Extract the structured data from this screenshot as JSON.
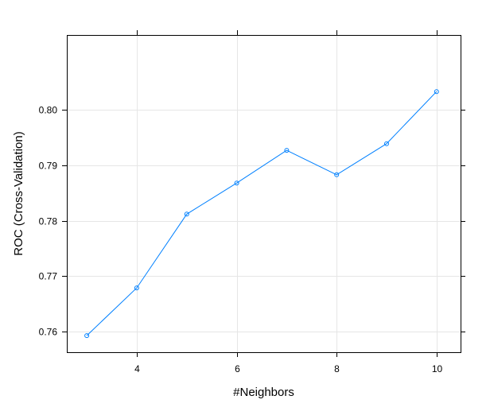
{
  "chart_data": {
    "type": "line",
    "title": "",
    "xlabel": "#Neighbors",
    "ylabel": "ROC (Cross-Validation)",
    "x": [
      3,
      4,
      5,
      6,
      7,
      8,
      9,
      10
    ],
    "series": [
      {
        "name": "ROC",
        "values": [
          0.7593,
          0.7679,
          0.7812,
          0.7868,
          0.7927,
          0.7883,
          0.7939,
          0.8033
        ]
      }
    ],
    "xlim": [
      2.6,
      10.48
    ],
    "ylim": [
      0.7563,
      0.8135
    ],
    "xticks": [
      4,
      6,
      8,
      10
    ],
    "xtick_labels": [
      "4",
      "6",
      "8",
      "10"
    ],
    "yticks": [
      0.76,
      0.77,
      0.78,
      0.79,
      0.8
    ],
    "ytick_labels": [
      "0.76",
      "0.77",
      "0.78",
      "0.79",
      "0.80"
    ],
    "grid": true,
    "line_color": "#0080ff",
    "grid_color": "#e6e6e6",
    "frame_color": "#000000"
  }
}
